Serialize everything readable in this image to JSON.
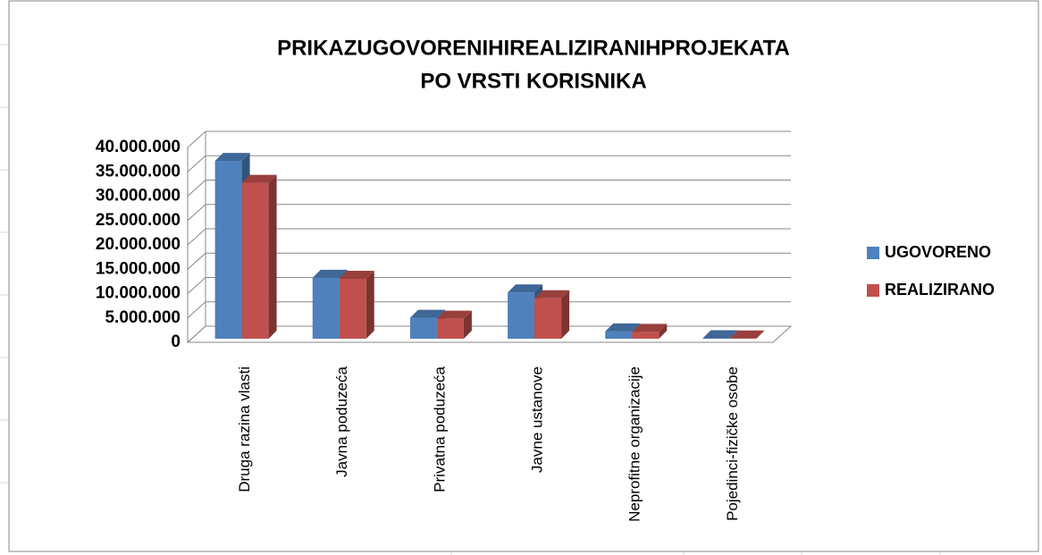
{
  "chart_data": {
    "type": "bar3d",
    "title_lines": [
      "PRIKAZUGOVORENIHIREALIZIRANIHPROJEKATA",
      "PO VRSTI KORISNIKA"
    ],
    "categories": [
      "Druga razina vlasti",
      "Javna poduzeća",
      "Privatna poduzeća",
      "Javne ustanove",
      "Neprofitne organizacije",
      "Pojedinci-fizičke osobe"
    ],
    "series": [
      {
        "name": "UGOVORENO",
        "color": "#4f81bd",
        "values": [
          36500000,
          12500000,
          4300000,
          9500000,
          1500000,
          100000
        ]
      },
      {
        "name": "REALIZIRANO",
        "color": "#c0504d",
        "values": [
          32000000,
          12300000,
          4100000,
          8300000,
          1400000,
          50000
        ]
      }
    ],
    "ylim": [
      0,
      40000000
    ],
    "yticks": [
      0,
      {
        "value": 5000000,
        "label": "5.000.000"
      },
      {
        "value": 10000000,
        "label": "10.000.000"
      },
      {
        "value": 15000000,
        "label": "15.000.000"
      },
      {
        "value": 20000000,
        "label": "20.000.000"
      },
      {
        "value": 25000000,
        "label": "25.000.000"
      },
      {
        "value": 30000000,
        "label": "30.000.000"
      },
      {
        "value": 35000000,
        "label": "35.000.000"
      },
      {
        "value": 40000000,
        "label": "40.000.000"
      }
    ],
    "grid": true,
    "legend": "right"
  }
}
